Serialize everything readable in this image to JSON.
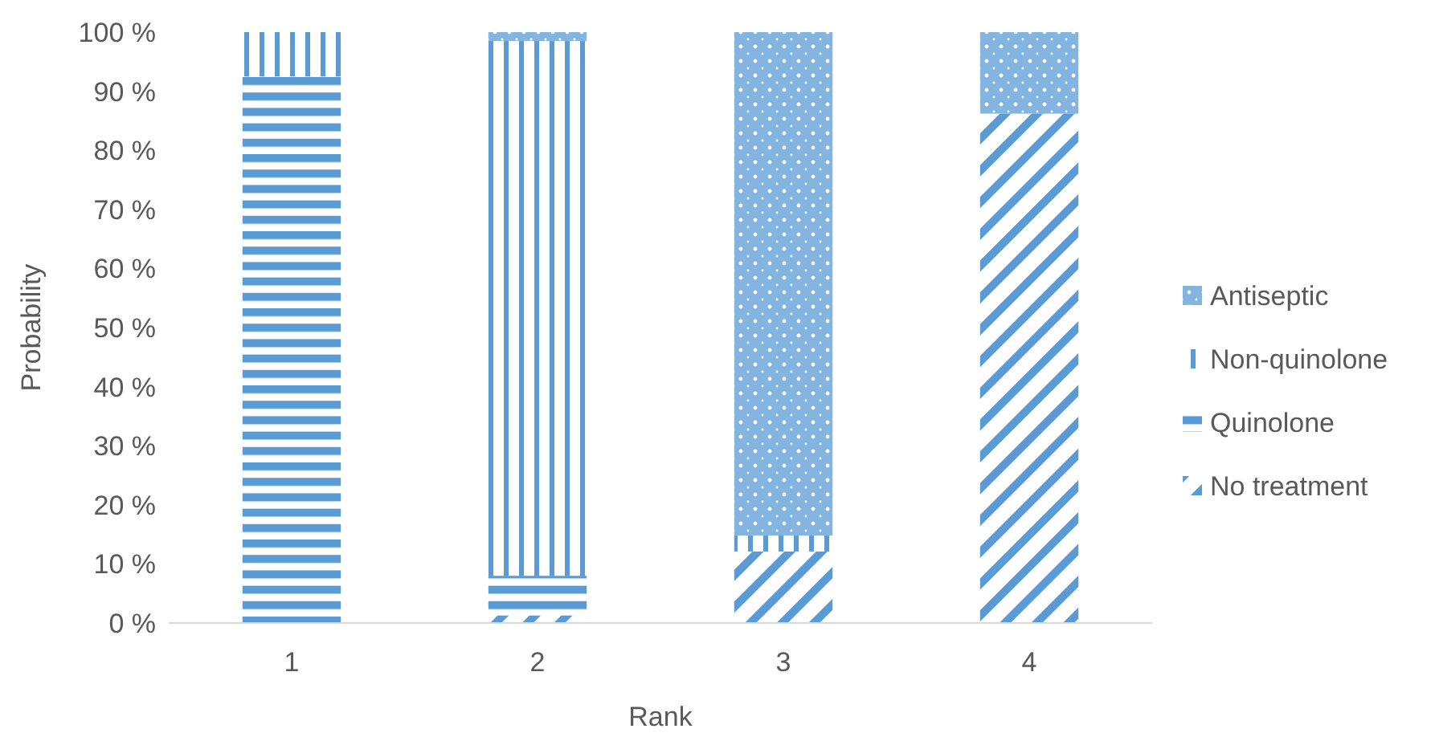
{
  "chart_data": {
    "type": "bar",
    "stacked": true,
    "xlabel": "Rank",
    "ylabel": "Probability",
    "categories": [
      "1",
      "2",
      "3",
      "4"
    ],
    "series": [
      {
        "name": "No treatment",
        "color": "#5b9bd5",
        "values": [
          0,
          1.3,
          12.1,
          86.2
        ]
      },
      {
        "name": "Quinolone",
        "color": "#5b9bd5",
        "values": [
          92.5,
          6.7,
          0,
          0
        ]
      },
      {
        "name": "Non-quinolone",
        "color": "#5b9bd5",
        "values": [
          7.5,
          90.5,
          2.7,
          0
        ]
      },
      {
        "name": "Antiseptic",
        "color": "#5b9bd5",
        "values": [
          0,
          1.5,
          85.2,
          13.8
        ]
      }
    ],
    "ylim": [
      0,
      100
    ],
    "yticks": [
      {
        "value": 0,
        "label": "0 %"
      },
      {
        "value": 10,
        "label": "10 %"
      },
      {
        "value": 20,
        "label": "20 %"
      },
      {
        "value": 30,
        "label": "30 %"
      },
      {
        "value": 40,
        "label": "40 %"
      },
      {
        "value": 50,
        "label": "50 %"
      },
      {
        "value": 60,
        "label": "60 %"
      },
      {
        "value": 70,
        "label": "70 %"
      },
      {
        "value": 80,
        "label": "80 %"
      },
      {
        "value": 90,
        "label": "90 %"
      },
      {
        "value": 100,
        "label": "100 %"
      }
    ],
    "grid": false,
    "legend": "right"
  }
}
